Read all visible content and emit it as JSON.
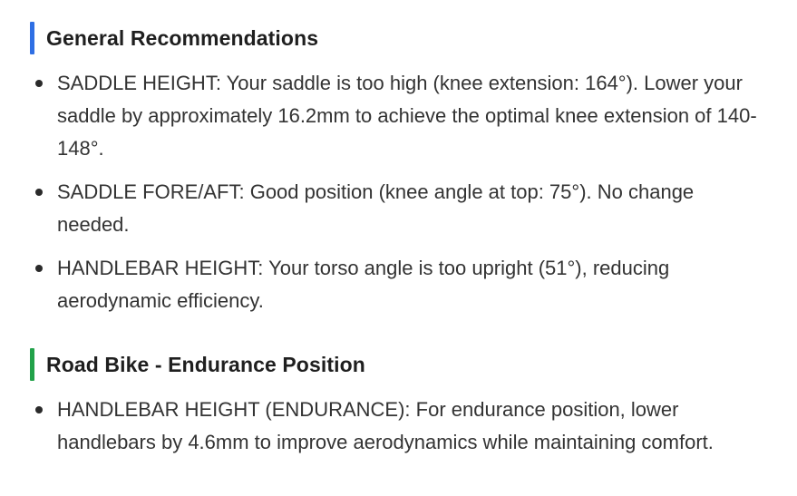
{
  "sections": [
    {
      "title": "General Recommendations",
      "accent_color": "#2f6fe4",
      "items": [
        "SADDLE HEIGHT: Your saddle is too high (knee extension: 164°). Lower your saddle by approximately 16.2mm to achieve the optimal knee extension of 140-148°.",
        "SADDLE FORE/AFT: Good position (knee angle at top: 75°). No change needed.",
        "HANDLEBAR HEIGHT: Your torso angle is too upright (51°), reducing aerodynamic efficiency."
      ]
    },
    {
      "title": "Road Bike - Endurance Position",
      "accent_color": "#22a24a",
      "items": [
        "HANDLEBAR HEIGHT (ENDURANCE): For endurance position, lower handlebars by 4.6mm to improve aerodynamics while maintaining comfort."
      ]
    }
  ]
}
